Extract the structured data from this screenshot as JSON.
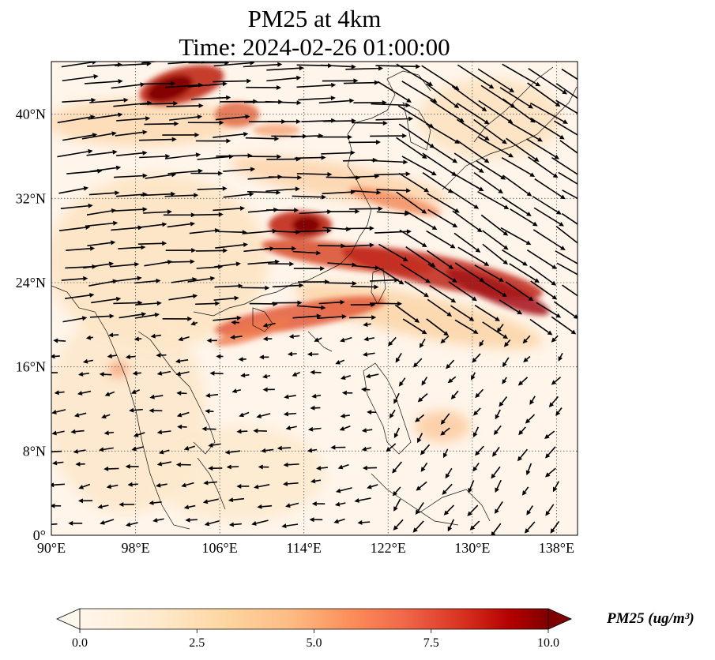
{
  "title_line1": "PM25 at 4km",
  "title_line2": "Time: 2024-02-26 01:00:00",
  "map": {
    "lon_range": [
      90,
      140
    ],
    "lat_range": [
      0,
      45
    ],
    "lon_ticks": [
      {
        "value": 90,
        "label": "90°E"
      },
      {
        "value": 98,
        "label": "98°E"
      },
      {
        "value": 106,
        "label": "106°E"
      },
      {
        "value": 114,
        "label": "114°E"
      },
      {
        "value": 122,
        "label": "122°E"
      },
      {
        "value": 130,
        "label": "130°E"
      },
      {
        "value": 138,
        "label": "138°E"
      }
    ],
    "lat_ticks": [
      {
        "value": 0,
        "label": "0°"
      },
      {
        "value": 8,
        "label": "8°N"
      },
      {
        "value": 16,
        "label": "16°N"
      },
      {
        "value": 24,
        "label": "24°N"
      },
      {
        "value": 32,
        "label": "32°N"
      },
      {
        "value": 40,
        "label": "40°N"
      }
    ],
    "gridlines": "dotted",
    "field_colors": [
      "#fff5eb",
      "#fdd49e",
      "#fc8d59",
      "#d7301f",
      "#7f0000"
    ]
  },
  "colorbar": {
    "label": "PM25 (ug/m³)",
    "vmin": 0,
    "vmax": 10,
    "extend": "both",
    "ticks": [
      {
        "value": 0,
        "label": "0.0"
      },
      {
        "value": 2.5,
        "label": "2.5"
      },
      {
        "value": 5,
        "label": "5.0"
      },
      {
        "value": 7.5,
        "label": "7.5"
      },
      {
        "value": 10,
        "label": "10.0"
      }
    ],
    "colormap": "OrRd"
  }
}
